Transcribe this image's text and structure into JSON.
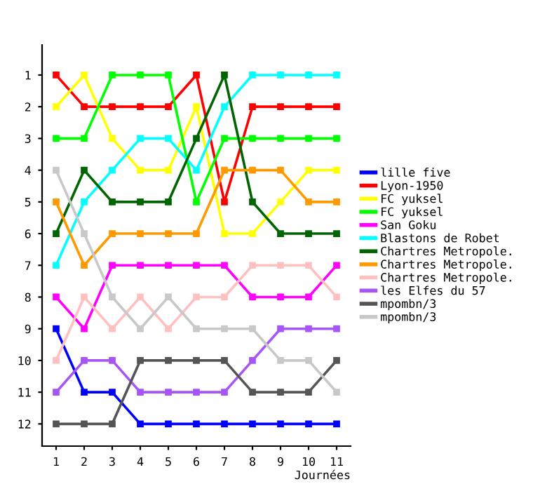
{
  "chart_data": {
    "type": "line",
    "xlabel": "Journées",
    "x": [
      1,
      2,
      3,
      4,
      5,
      6,
      7,
      8,
      9,
      10,
      11
    ],
    "xlim": [
      0.5,
      11.5
    ],
    "xticks": [
      1,
      2,
      3,
      4,
      5,
      6,
      7,
      8,
      9,
      10,
      11
    ],
    "ylim": [
      12.7,
      0.05
    ],
    "yticks": [
      1,
      2,
      3,
      4,
      5,
      6,
      7,
      8,
      9,
      10,
      11,
      12
    ],
    "marker": "square",
    "grid": false,
    "legend": "right",
    "series": [
      {
        "name": "lille five",
        "color": "#0000ff",
        "values": [
          9,
          11,
          11,
          12,
          12,
          12,
          12,
          12,
          12,
          12,
          12
        ]
      },
      {
        "name": "Lyon-1950",
        "color": "#ff0000",
        "values": [
          1,
          2,
          2,
          2,
          2,
          1,
          5,
          2,
          2,
          2,
          2
        ]
      },
      {
        "name": "FC yuksel",
        "color": "#ffff00",
        "values": [
          2,
          1,
          3,
          4,
          4,
          2,
          6,
          6,
          5,
          4,
          4
        ]
      },
      {
        "name": "FC yuksel",
        "color": "#00ff00",
        "values": [
          3,
          3,
          1,
          1,
          1,
          5,
          3,
          3,
          3,
          3,
          3
        ]
      },
      {
        "name": "San Goku",
        "color": "#ff00ff",
        "values": [
          8,
          9,
          7,
          7,
          7,
          7,
          7,
          8,
          8,
          8,
          7
        ]
      },
      {
        "name": "Blastons de Robet",
        "color": "#00ffff",
        "values": [
          7,
          5,
          4,
          3,
          3,
          4,
          2,
          1,
          1,
          1,
          1
        ]
      },
      {
        "name": "Chartres Metropole.",
        "color": "#006400",
        "values": [
          6,
          4,
          5,
          5,
          5,
          3,
          1,
          5,
          6,
          6,
          6
        ]
      },
      {
        "name": "Chartres Metropole.",
        "color": "#ff9900",
        "values": [
          5,
          7,
          6,
          6,
          6,
          6,
          4,
          4,
          4,
          5,
          5
        ]
      },
      {
        "name": "Chartres Metropole.",
        "color": "#ffc0c0",
        "values": [
          10,
          8,
          9,
          8,
          9,
          8,
          8,
          7,
          7,
          7,
          8
        ]
      },
      {
        "name": "les Elfes du 57",
        "color": "#a855f7",
        "values": [
          11,
          10,
          10,
          11,
          11,
          11,
          11,
          10,
          9,
          9,
          9
        ]
      },
      {
        "name": "mpombn/3",
        "color": "#555555",
        "values": [
          12,
          12,
          12,
          10,
          10,
          10,
          10,
          11,
          11,
          11,
          10
        ]
      },
      {
        "name": "mpombn/3",
        "color": "#c8c8c8",
        "values": [
          4,
          6,
          8,
          9,
          8,
          9,
          9,
          9,
          10,
          10,
          11
        ]
      }
    ]
  }
}
